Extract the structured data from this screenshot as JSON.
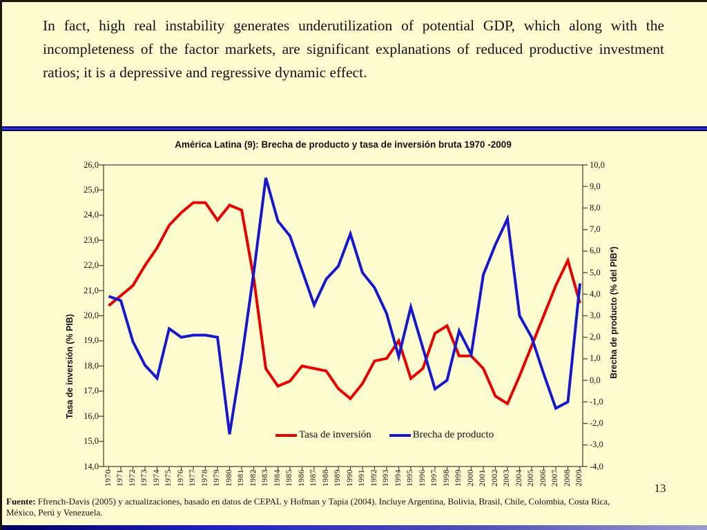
{
  "slide": {
    "background": "#FCFCD0",
    "paragraph": "In fact, high real instability generates underutilization of potential GDP, which along with the incompleteness of the factor markets, are significant explanations of reduced productive investment ratios; it is a depressive and regressive dynamic effect.",
    "page_number": "13",
    "footer": {
      "label": "Fuente:",
      "line1": "Ffrench-Davis (2005) y actualizaciones, basado en datos de CEPAL y Hofman y Tapia (2004). Incluye Argentina, Bolivia, Brasil, Chile, Colombia, Costa Rica,",
      "line2": "México, Perú y Venezuela."
    }
  },
  "chart_data": {
    "type": "line",
    "title": "América Latina (9): Brecha de producto y tasa de inversión bruta 1970 -2009",
    "grid": false,
    "legend_position": "bottom-center-inside",
    "x": [
      1970,
      1971,
      1972,
      1973,
      1974,
      1975,
      1976,
      1977,
      1978,
      1979,
      1980,
      1981,
      1982,
      1983,
      1984,
      1985,
      1986,
      1987,
      1988,
      1989,
      1990,
      1991,
      1992,
      1993,
      1994,
      1995,
      1996,
      1997,
      1998,
      1999,
      2000,
      2001,
      2002,
      2003,
      2004,
      2005,
      2006,
      2007,
      2008,
      2009
    ],
    "left_axis": {
      "label": "Tasa de inversión (% PIB)",
      "min": 14,
      "max": 26,
      "step": 1,
      "tick_format": "decimal-comma"
    },
    "right_axis": {
      "label": "Brecha de producto (% del PIB*)",
      "min": -4,
      "max": 10,
      "step": 1,
      "tick_format": "decimal-comma"
    },
    "series": [
      {
        "name": "Tasa de inversión",
        "axis": "left",
        "color": "#E60000",
        "values": [
          20.4,
          20.8,
          21.2,
          22.0,
          22.7,
          23.6,
          24.1,
          24.5,
          24.5,
          23.8,
          24.4,
          24.2,
          21.5,
          17.9,
          17.2,
          17.4,
          18.0,
          17.9,
          17.8,
          17.1,
          16.7,
          17.3,
          18.2,
          18.3,
          19.0,
          17.5,
          17.9,
          19.3,
          19.6,
          18.4,
          18.4,
          17.9,
          16.8,
          16.5,
          17.6,
          18.8,
          20.0,
          21.2,
          22.2,
          20.5
        ]
      },
      {
        "name": "Brecha de producto",
        "axis": "right",
        "color": "#1717CE",
        "values": [
          3.9,
          3.7,
          1.8,
          0.7,
          0.1,
          2.4,
          2.0,
          2.1,
          2.1,
          2.0,
          -2.5,
          1.0,
          5.0,
          9.4,
          7.4,
          6.7,
          5.1,
          3.5,
          4.7,
          5.3,
          6.8,
          5.0,
          4.3,
          3.1,
          1.1,
          3.4,
          1.5,
          -0.4,
          0.0,
          2.3,
          1.2,
          4.9,
          6.3,
          7.5,
          3.0,
          2.0,
          0.3,
          -1.3,
          -1.0,
          4.5
        ]
      }
    ],
    "plot_border_color": "#4A4A3C"
  }
}
